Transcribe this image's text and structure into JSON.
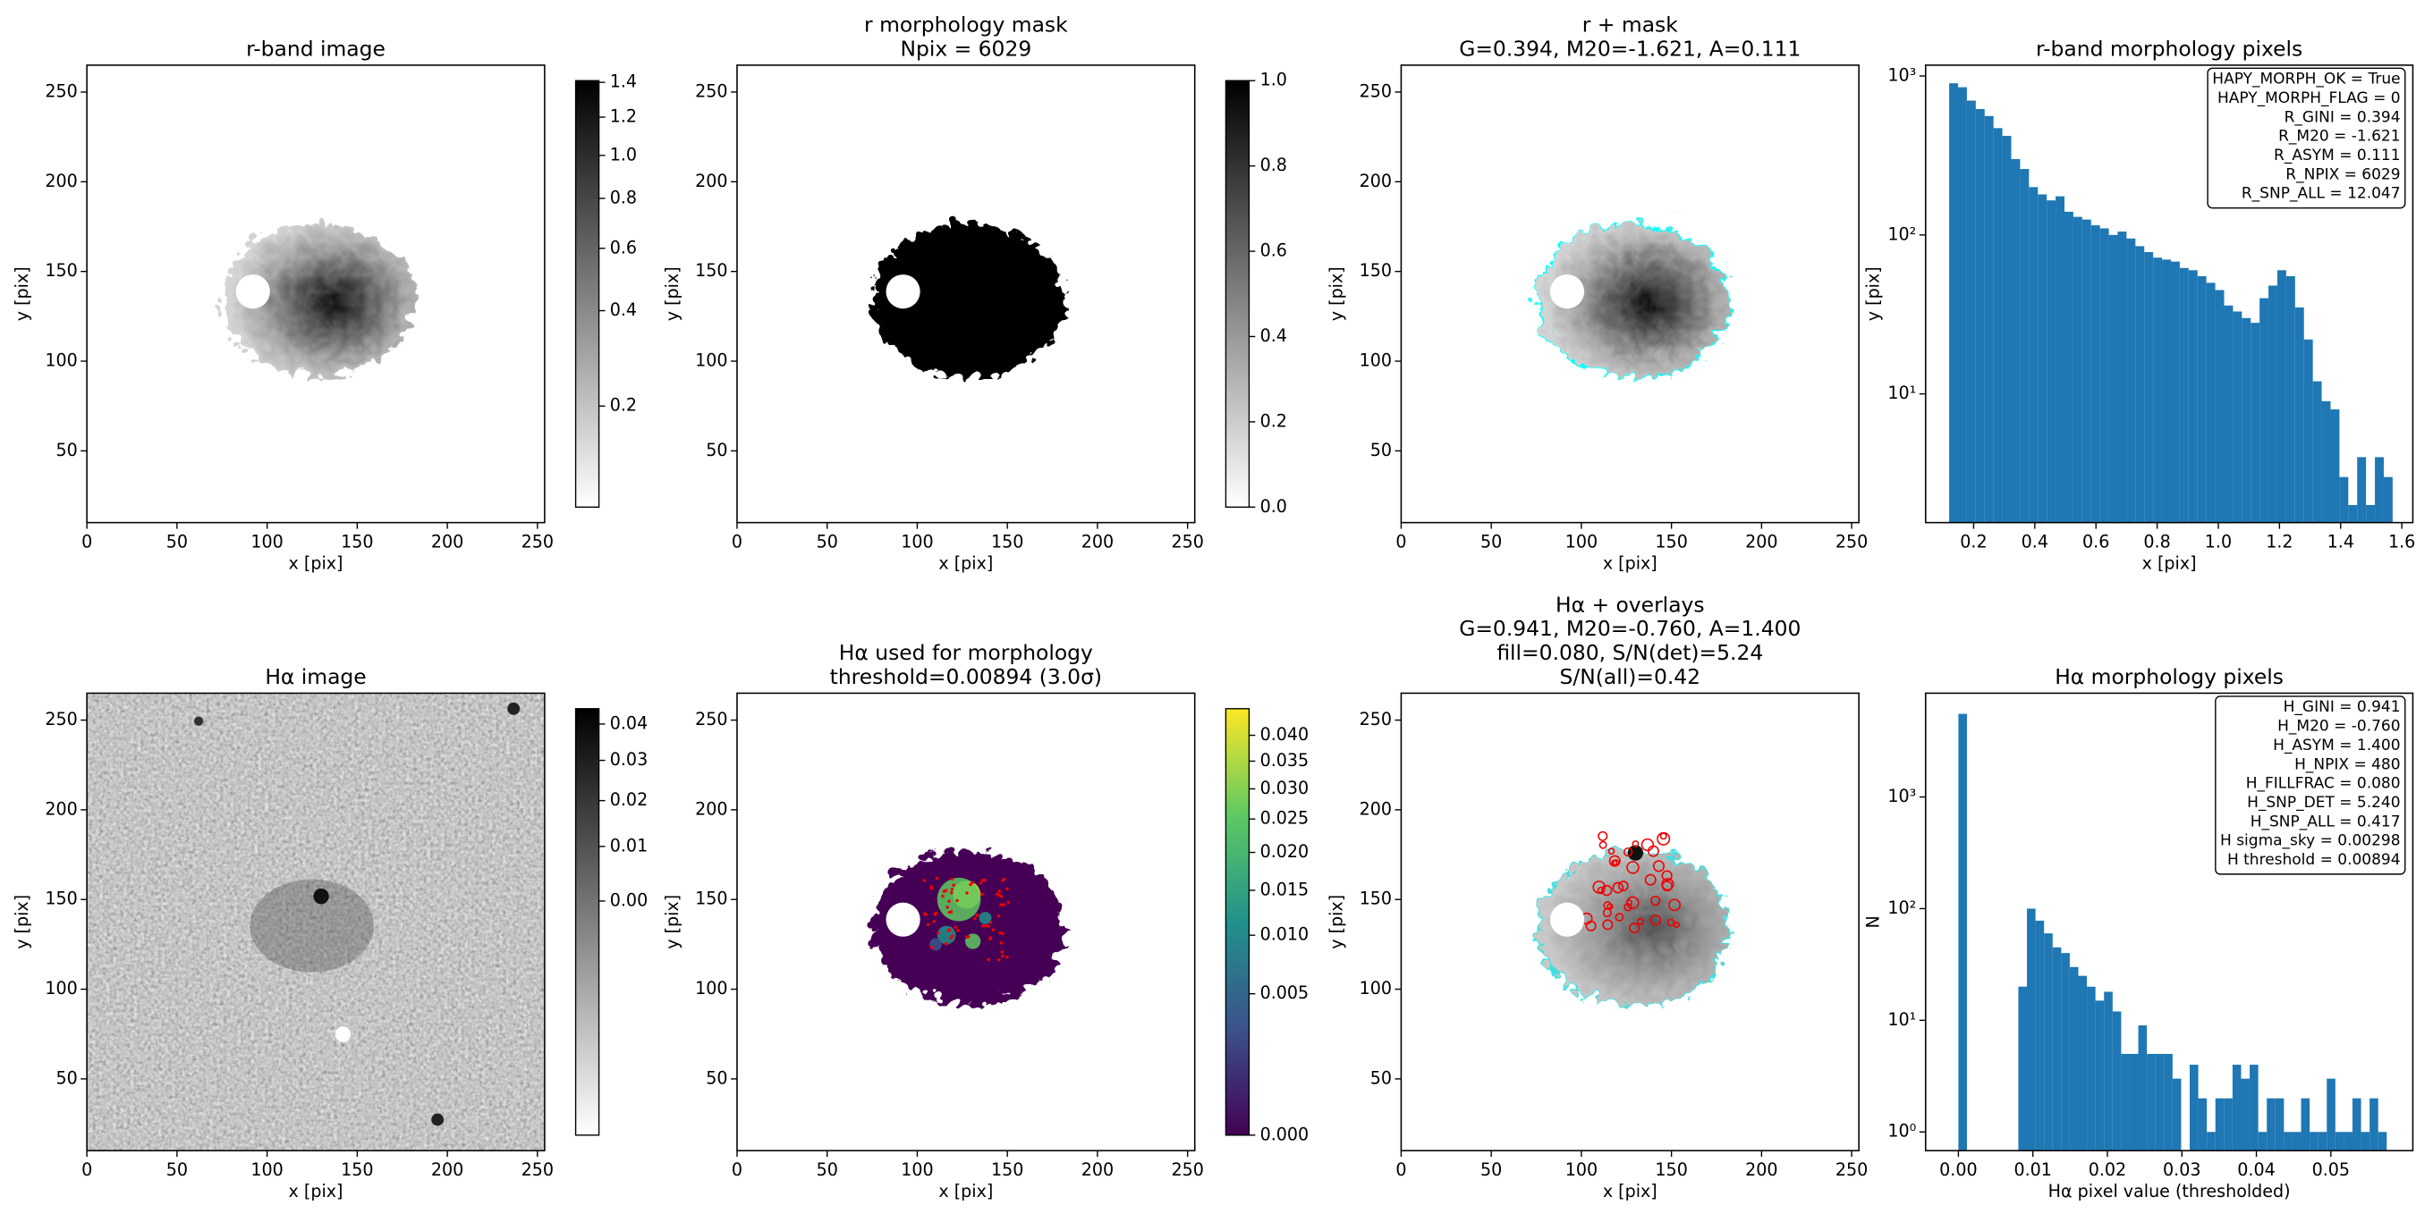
{
  "chart_data": [
    {
      "type": "image",
      "title": [
        "r-band image"
      ],
      "xlabel": "x [pix]",
      "ylabel": "y [pix]",
      "xlim": [
        0,
        254
      ],
      "ylim": [
        10,
        265
      ],
      "xticks": [
        0,
        50,
        100,
        150,
        200,
        250
      ],
      "yticks": [
        50,
        100,
        150,
        200,
        250
      ],
      "colorbar": {
        "cmap": "gray_r",
        "scale": "sqrt",
        "lim": [
          0.128,
          1.41
        ],
        "ticks": [
          0.2,
          0.4,
          0.6,
          0.8,
          {
            "value": 1,
            "label": "1.0"
          },
          1.2,
          1.4
        ]
      }
    },
    {
      "type": "image",
      "title": [
        "r morphology mask",
        "Npix = 6029"
      ],
      "xlabel": "x [pix]",
      "ylabel": "y [pix]",
      "xlim": [
        0,
        254
      ],
      "ylim": [
        10,
        265
      ],
      "xticks": [
        0,
        50,
        100,
        150,
        200,
        250
      ],
      "yticks": [
        50,
        100,
        150,
        200,
        250
      ],
      "colorbar": {
        "cmap": "gray_r",
        "scale": "linear",
        "lim": [
          0,
          1
        ],
        "ticks": [
          {
            "value": 0,
            "label": "0.0"
          },
          0.2,
          0.4,
          0.6,
          0.8,
          {
            "value": 1,
            "label": "1.0"
          }
        ]
      }
    },
    {
      "type": "image",
      "title": [
        "r + mask",
        "G=0.394, M20=-1.621, A=0.111"
      ],
      "xlabel": "x [pix]",
      "ylabel": "y [pix]",
      "xlim": [
        0,
        254
      ],
      "ylim": [
        10,
        265
      ],
      "xticks": [
        0,
        50,
        100,
        150,
        200,
        250
      ],
      "yticks": [
        50,
        100,
        150,
        200,
        250
      ]
    },
    {
      "type": "histogram",
      "title": [
        "r-band morphology pixels"
      ],
      "xlabel": "x [pix]",
      "ylabel": "y [pix]",
      "color": "#1f77b4",
      "ylog": true,
      "bins": [
        0.12,
        0.149,
        0.178,
        0.207,
        0.236,
        0.265,
        0.294,
        0.323,
        0.352,
        0.381,
        0.41,
        0.439,
        0.468,
        0.497,
        0.526,
        0.555,
        0.584,
        0.613,
        0.642,
        0.671,
        0.7,
        0.729,
        0.758,
        0.787,
        0.816,
        0.845,
        0.874,
        0.903,
        0.932,
        0.961,
        0.99,
        1.019,
        1.048,
        1.077,
        1.106,
        1.135,
        1.164,
        1.193,
        1.222,
        1.251,
        1.28,
        1.309,
        1.338,
        1.367,
        1.396,
        1.425,
        1.454,
        1.483,
        1.512,
        1.541,
        1.57
      ],
      "values": [
        900,
        850,
        700,
        620,
        560,
        470,
        420,
        300,
        260,
        200,
        180,
        165,
        175,
        140,
        130,
        125,
        115,
        110,
        100,
        105,
        95,
        85,
        78,
        72,
        70,
        68,
        62,
        60,
        55,
        50,
        45,
        36,
        33,
        30,
        28,
        40,
        48,
        60,
        55,
        35,
        22,
        12,
        9,
        8,
        3,
        2,
        4,
        2,
        4,
        3
      ],
      "xlim": [
        0.043,
        1.636
      ],
      "ylim": [
        1.55,
        1170
      ],
      "xticks": [
        0.2,
        0.4,
        0.6,
        0.8,
        {
          "value": 1,
          "label": "1.0"
        },
        1.2,
        1.4,
        1.6
      ],
      "yticks": [
        {
          "value": 10,
          "label": "10¹"
        },
        {
          "value": 100,
          "label": "10²"
        },
        {
          "value": 1000,
          "label": "10³"
        }
      ],
      "stats": [
        "HAPY_MORPH_OK = True",
        "HAPY_MORPH_FLAG = 0",
        "R_GINI = 0.394",
        "R_M20 = -1.621",
        "R_ASYM = 0.111",
        "R_NPIX = 6029",
        "R_SNP_ALL = 12.047"
      ]
    },
    {
      "type": "image",
      "title": [
        "Hα image"
      ],
      "xlabel": "x [pix]",
      "ylabel": "y [pix]",
      "xlim": [
        0,
        254
      ],
      "ylim": [
        10,
        265
      ],
      "xticks": [
        0,
        50,
        100,
        150,
        200,
        250
      ],
      "yticks": [
        50,
        100,
        150,
        200,
        250
      ],
      "colorbar": {
        "cmap": "gray_r",
        "scale": "sqrt",
        "lim": [
          -0.0192,
          0.0445
        ],
        "ticks": [
          {
            "value": 0,
            "label": "0.00"
          },
          {
            "value": 0.01,
            "label": "0.01"
          },
          {
            "value": 0.02,
            "label": "0.02"
          },
          {
            "value": 0.03,
            "label": "0.03"
          },
          {
            "value": 0.04,
            "label": "0.04"
          }
        ]
      }
    },
    {
      "type": "image",
      "title": [
        "Hα used for morphology",
        "threshold=0.00894 (3.0σ)"
      ],
      "xlabel": "x [pix]",
      "ylabel": "y [pix]",
      "xlim": [
        0,
        254
      ],
      "ylim": [
        10,
        265
      ],
      "xticks": [
        0,
        50,
        100,
        150,
        200,
        250
      ],
      "yticks": [
        50,
        100,
        150,
        200,
        250
      ],
      "colorbar": {
        "cmap": "viridis",
        "scale": "sqrt",
        "lim": [
          0,
          0.0455
        ],
        "ticks": [
          {
            "value": 0,
            "label": "0.000"
          },
          {
            "value": 0.005,
            "label": "0.005"
          },
          {
            "value": 0.01,
            "label": "0.010"
          },
          {
            "value": 0.015,
            "label": "0.015"
          },
          {
            "value": 0.02,
            "label": "0.020"
          },
          {
            "value": 0.025,
            "label": "0.025"
          },
          {
            "value": 0.03,
            "label": "0.030"
          },
          {
            "value": 0.035,
            "label": "0.035"
          },
          {
            "value": 0.04,
            "label": "0.040"
          }
        ]
      }
    },
    {
      "type": "image",
      "title": [
        "Hα + overlays",
        "G=0.941, M20=-0.760, A=1.400",
        "fill=0.080, S/N(det)=5.24",
        "S/N(all)=0.42"
      ],
      "xlabel": "x [pix]",
      "ylabel": "y [pix]",
      "xlim": [
        0,
        254
      ],
      "ylim": [
        10,
        265
      ],
      "xticks": [
        0,
        50,
        100,
        150,
        200,
        250
      ],
      "yticks": [
        50,
        100,
        150,
        200,
        250
      ]
    },
    {
      "type": "histogram",
      "title": [
        "Hα morphology pixels"
      ],
      "xlabel": "Hα pixel value (thresholded)",
      "ylabel": "N",
      "color": "#1f77b4",
      "ylog": true,
      "bins": [
        0,
        0.00115,
        0.0023,
        0.00345,
        0.0046,
        0.00575,
        0.0069,
        0.00805,
        0.0092,
        0.01035,
        0.0115,
        0.01265,
        0.0138,
        0.01495,
        0.0161,
        0.01725,
        0.0184,
        0.01955,
        0.0207,
        0.02185,
        0.023,
        0.02415,
        0.0253,
        0.02645,
        0.0276,
        0.02875,
        0.0299,
        0.03105,
        0.0322,
        0.03335,
        0.0345,
        0.03565,
        0.0368,
        0.03795,
        0.0391,
        0.04025,
        0.0414,
        0.04255,
        0.0437,
        0.04485,
        0.046,
        0.04715,
        0.0483,
        0.04945,
        0.0506,
        0.05175,
        0.0529,
        0.05405,
        0.0552,
        0.05635,
        0.0575
      ],
      "values": [
        5549,
        0,
        0,
        0,
        0,
        0,
        0,
        20,
        100,
        78,
        60,
        45,
        40,
        30,
        25,
        20,
        15,
        18,
        12,
        5,
        5,
        9,
        5,
        5,
        5,
        3,
        0,
        4,
        2,
        1,
        2,
        2,
        4,
        3,
        4,
        1,
        2,
        2,
        1,
        1,
        2,
        1,
        1,
        3,
        1,
        1,
        2,
        1,
        2,
        1
      ],
      "xlim": [
        -0.0044,
        0.061
      ],
      "ylim": [
        0.68,
        8500
      ],
      "xticks": [
        {
          "value": 0,
          "label": "0.00"
        },
        {
          "value": 0.01,
          "label": "0.01"
        },
        {
          "value": 0.02,
          "label": "0.02"
        },
        {
          "value": 0.03,
          "label": "0.03"
        },
        {
          "value": 0.04,
          "label": "0.04"
        },
        {
          "value": 0.05,
          "label": "0.05"
        }
      ],
      "yticks": [
        {
          "value": 1,
          "label": "10⁰"
        },
        {
          "value": 10,
          "label": "10¹"
        },
        {
          "value": 100,
          "label": "10²"
        },
        {
          "value": 1000,
          "label": "10³"
        }
      ],
      "stats": [
        "H_GINI = 0.941",
        "H_M20 = -0.760",
        "H_ASYM = 1.400",
        "H_NPIX = 480",
        "H_FILLFRAC = 0.080",
        "H_SNP_DET = 5.240",
        "H_SNP_ALL = 0.417",
        "H sigma_sky = 0.00298",
        "H threshold = 0.00894"
      ]
    }
  ]
}
